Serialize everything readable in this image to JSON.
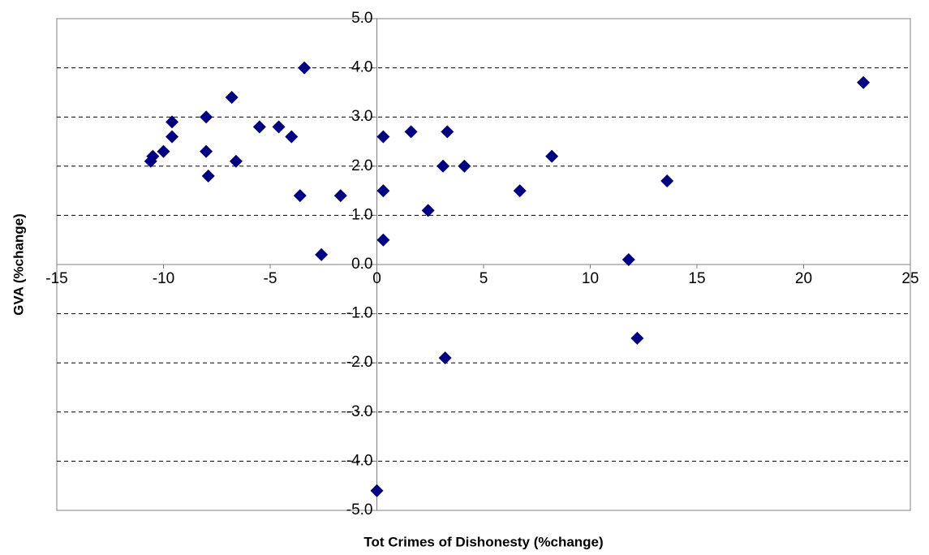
{
  "chart_data": {
    "type": "scatter",
    "x_label": "Tot Crimes of Dishonesty (%change)",
    "y_label": "GVA (%change)",
    "color": "#000080",
    "x": [
      -10.6,
      -10.5,
      -10.0,
      -9.6,
      -9.6,
      -8.0,
      -8.0,
      -7.9,
      -6.8,
      -6.6,
      -5.5,
      -4.6,
      -4.0,
      -3.4,
      -3.6,
      -2.6,
      -1.7,
      0.0,
      0.3,
      0.3,
      0.3,
      1.6,
      2.4,
      3.1,
      3.2,
      3.3,
      4.1,
      6.7,
      8.2,
      11.8,
      12.2,
      13.6,
      22.8
    ],
    "values": [
      2.1,
      2.2,
      2.3,
      2.6,
      2.9,
      2.3,
      3.0,
      1.8,
      3.4,
      2.1,
      2.8,
      2.8,
      2.6,
      4.0,
      1.4,
      0.2,
      1.4,
      -4.6,
      2.6,
      1.5,
      0.5,
      2.7,
      1.1,
      2.0,
      -1.9,
      2.7,
      2.0,
      1.5,
      2.2,
      0.1,
      -1.5,
      1.7,
      3.7
    ],
    "xlim": [
      -15,
      25
    ],
    "xticks": [
      -15,
      -10,
      -5,
      0,
      5,
      10,
      15,
      20,
      25
    ],
    "ylim": [
      -5,
      5
    ],
    "yticks": [
      {
        "value": 5,
        "label": "5.0"
      },
      {
        "value": 4,
        "label": "4.0"
      },
      {
        "value": 3,
        "label": "3.0"
      },
      {
        "value": 2,
        "label": "2.0"
      },
      {
        "value": 1,
        "label": "1.0"
      },
      {
        "value": 0,
        "label": "0.0"
      },
      {
        "value": -1,
        "label": "-1.0"
      },
      {
        "value": -2,
        "label": "-2.0"
      },
      {
        "value": -3,
        "label": "-3.0"
      },
      {
        "value": -4,
        "label": "-4.0"
      },
      {
        "value": -5,
        "label": "-5.0"
      }
    ],
    "grid": true
  }
}
